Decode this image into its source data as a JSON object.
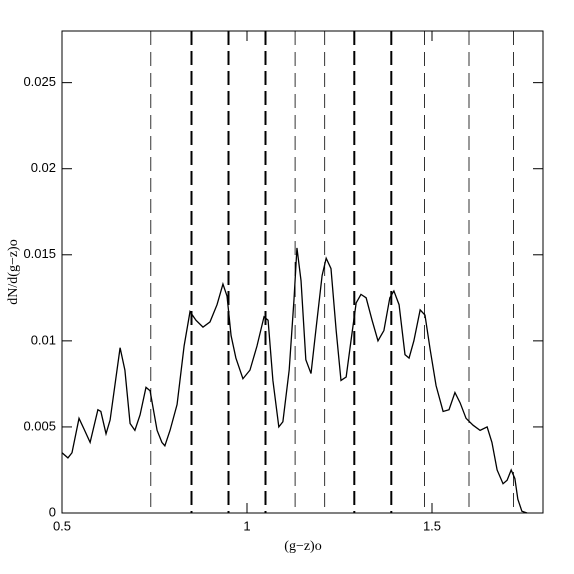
{
  "chart_data": {
    "type": "line",
    "x_label": "(g−z)o",
    "y_label": "dN/d(g−z)o",
    "xlim": [
      0.5,
      1.8
    ],
    "ylim": [
      0,
      0.028
    ],
    "xticks": [
      0.5,
      1,
      1.5
    ],
    "yticks": [
      0,
      0.005,
      0.01,
      0.015,
      0.02,
      0.025
    ],
    "series": [
      {
        "color": "#000000",
        "x": [
          0.5,
          0.516,
          0.527,
          0.546,
          0.559,
          0.576,
          0.597,
          0.605,
          0.619,
          0.63,
          0.657,
          0.67,
          0.684,
          0.697,
          0.711,
          0.727,
          0.738,
          0.757,
          0.77,
          0.778,
          0.792,
          0.811,
          0.83,
          0.846,
          0.862,
          0.881,
          0.9,
          0.919,
          0.935,
          0.946,
          0.957,
          0.97,
          0.989,
          1.008,
          1.027,
          1.046,
          1.057,
          1.07,
          1.086,
          1.097,
          1.114,
          1.127,
          1.135,
          1.146,
          1.159,
          1.173,
          1.186,
          1.203,
          1.214,
          1.227,
          1.241,
          1.254,
          1.268,
          1.281,
          1.295,
          1.308,
          1.322,
          1.338,
          1.354,
          1.37,
          1.386,
          1.397,
          1.411,
          1.427,
          1.438,
          1.451,
          1.468,
          1.481,
          1.495,
          1.511,
          1.53,
          1.546,
          1.562,
          1.576,
          1.592,
          1.611,
          1.63,
          1.649,
          1.662,
          1.676,
          1.692,
          1.703,
          1.714,
          1.724,
          1.732,
          1.743,
          1.757
        ],
        "values": [
          0.0035,
          0.0032,
          0.0035,
          0.0055,
          0.0049,
          0.0041,
          0.006,
          0.0059,
          0.0046,
          0.0054,
          0.0096,
          0.0083,
          0.0052,
          0.0048,
          0.0057,
          0.0073,
          0.0071,
          0.0048,
          0.0041,
          0.0039,
          0.0048,
          0.0063,
          0.0097,
          0.0117,
          0.0112,
          0.0108,
          0.0111,
          0.0121,
          0.0133,
          0.0126,
          0.0103,
          0.009,
          0.0078,
          0.0083,
          0.0097,
          0.0114,
          0.0112,
          0.0077,
          0.005,
          0.0053,
          0.0083,
          0.0124,
          0.0154,
          0.0135,
          0.0089,
          0.0081,
          0.0106,
          0.0138,
          0.0148,
          0.0142,
          0.0106,
          0.0077,
          0.0079,
          0.01,
          0.0122,
          0.0127,
          0.0125,
          0.0112,
          0.01,
          0.0106,
          0.0125,
          0.0129,
          0.0121,
          0.0092,
          0.009,
          0.01,
          0.0118,
          0.0115,
          0.0095,
          0.0074,
          0.0059,
          0.006,
          0.007,
          0.0064,
          0.0055,
          0.0051,
          0.0048,
          0.005,
          0.0041,
          0.0025,
          0.0017,
          0.0019,
          0.0025,
          0.002,
          0.0008,
          0.0001,
          0
        ]
      }
    ],
    "vlines": [
      {
        "x": 0.74,
        "bold": false
      },
      {
        "x": 0.85,
        "bold": true
      },
      {
        "x": 0.95,
        "bold": true
      },
      {
        "x": 1.05,
        "bold": true
      },
      {
        "x": 1.13,
        "bold": false
      },
      {
        "x": 1.21,
        "bold": false
      },
      {
        "x": 1.29,
        "bold": true
      },
      {
        "x": 1.39,
        "bold": true
      },
      {
        "x": 1.48,
        "bold": false
      },
      {
        "x": 1.6,
        "bold": false
      },
      {
        "x": 1.72,
        "bold": false
      }
    ]
  }
}
